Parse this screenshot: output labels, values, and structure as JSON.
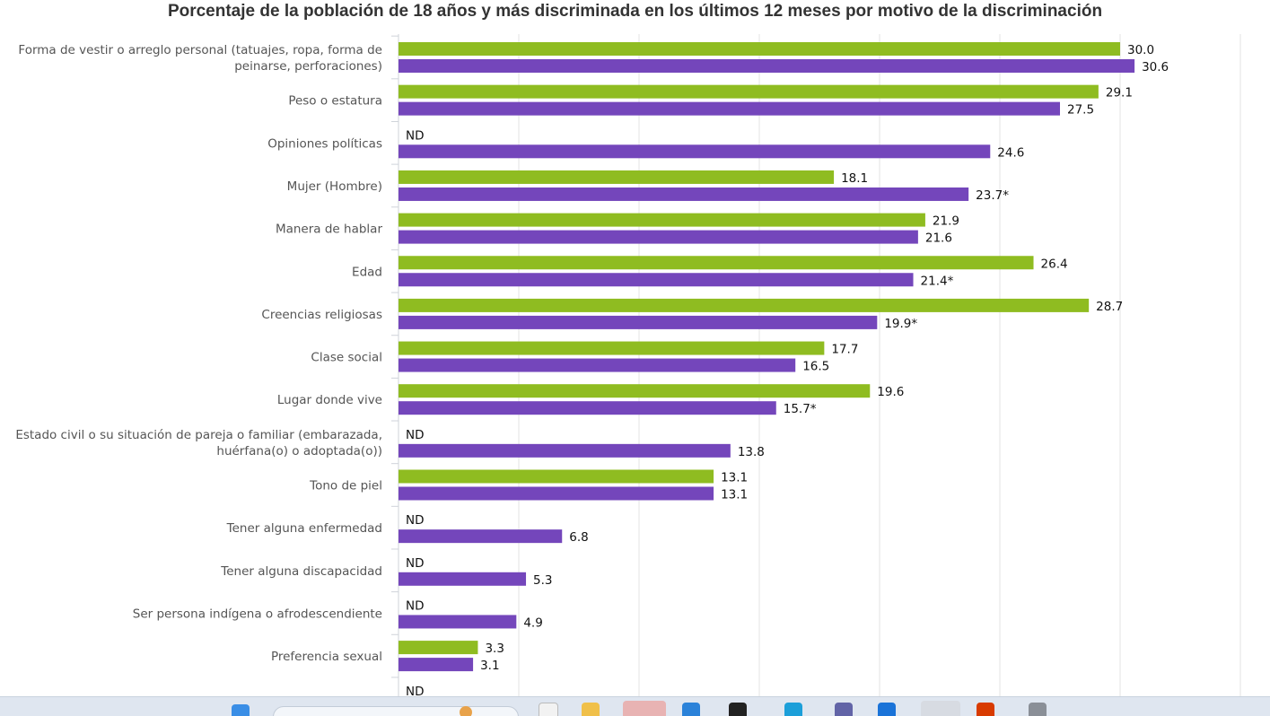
{
  "chart_data": {
    "type": "bar",
    "orientation": "horizontal",
    "title": "Porcentaje de la población de 18 años y más discriminada en los últimos 12 meses por motivo de la discriminación",
    "xlim": [
      0,
      35
    ],
    "grid": true,
    "categories": [
      "Forma de vestir o arreglo personal (tatuajes, ropa, forma de peinarse, perforaciones)",
      "Peso o estatura",
      "Opiniones políticas",
      "Mujer (Hombre)",
      "Manera de hablar",
      "Edad",
      "Creencias religiosas",
      "Clase social",
      "Lugar donde vive",
      "Estado civil o su situación de pareja o familiar (embarazada, huérfana(o) o adoptada(o))",
      "Tono de piel",
      "Tener alguna enfermedad",
      "Tener alguna discapacidad",
      "Ser persona indígena o afrodescendiente",
      "Preferencia sexual",
      ""
    ],
    "category_lines": [
      [
        "Forma de vestir o arreglo personal (tatuajes, ropa, forma de",
        "peinarse, perforaciones)"
      ],
      [
        "Peso o estatura"
      ],
      [
        "Opiniones políticas"
      ],
      [
        "Mujer (Hombre)"
      ],
      [
        "Manera de hablar"
      ],
      [
        "Edad"
      ],
      [
        "Creencias religiosas"
      ],
      [
        "Clase social"
      ],
      [
        "Lugar donde vive"
      ],
      [
        "Estado civil o su situación de pareja o familiar (embarazada,",
        "huérfana(o) o adoptada(o))"
      ],
      [
        "Tono de piel"
      ],
      [
        "Tener alguna enfermedad"
      ],
      [
        "Tener alguna discapacidad"
      ],
      [
        "Ser persona indígena o afrodescendiente"
      ],
      [
        "Preferencia sexual"
      ],
      [
        ""
      ]
    ],
    "series": [
      {
        "color": "#8fbc21",
        "values": [
          30.0,
          29.1,
          null,
          18.1,
          21.9,
          26.4,
          28.7,
          17.7,
          19.6,
          null,
          13.1,
          null,
          null,
          null,
          3.3,
          null
        ],
        "labels": [
          "30.0",
          "29.1",
          "ND",
          "18.1",
          "21.9",
          "26.4",
          "28.7",
          "17.7",
          "19.6",
          "ND",
          "13.1",
          "ND",
          "ND",
          "ND",
          "3.3",
          "ND"
        ]
      },
      {
        "color": "#7446bb",
        "values": [
          30.6,
          27.5,
          24.6,
          23.7,
          21.6,
          21.4,
          19.9,
          16.5,
          15.7,
          13.8,
          13.1,
          6.8,
          5.3,
          4.9,
          3.1,
          null
        ],
        "labels": [
          "30.6",
          "27.5",
          "24.6",
          "23.7*",
          "21.6",
          "21.4*",
          "19.9*",
          "16.5",
          "15.7*",
          "13.8",
          "13.1",
          "6.8",
          "5.3",
          "4.9",
          "3.1",
          ""
        ]
      }
    ]
  },
  "taskbar": {
    "icons": [
      "windows-start-icon",
      "search-field",
      "edge-icon",
      "file-explorer-icon",
      "app-icon",
      "mail-icon",
      "app-icon",
      "app-icon",
      "teams-icon",
      "app-icon",
      "chrome-icon",
      "office-icon",
      "app-icon"
    ]
  }
}
